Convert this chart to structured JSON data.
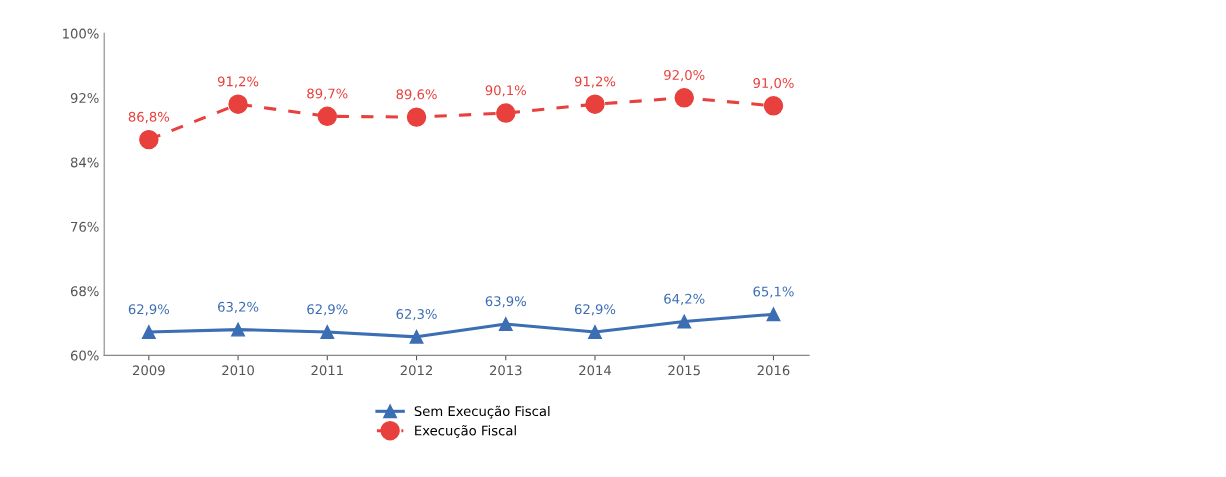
{
  "chart_data": {
    "type": "line",
    "categories": [
      "2009",
      "2010",
      "2011",
      "2012",
      "2013",
      "2014",
      "2015",
      "2016"
    ],
    "series": [
      {
        "name": "Sem Execução Fiscal",
        "color": "#3c6eb4",
        "marker": "triangle",
        "line_style": "solid",
        "values": [
          62.9,
          63.2,
          62.9,
          62.3,
          63.9,
          62.9,
          64.2,
          65.1
        ],
        "value_labels": [
          "62,9%",
          "63,2%",
          "62,9%",
          "62,3%",
          "63,9%",
          "62,9%",
          "64,2%",
          "65,1%"
        ]
      },
      {
        "name": "Execução Fiscal",
        "color": "#e8403c",
        "marker": "circle",
        "line_style": "dashed",
        "values": [
          86.8,
          91.2,
          89.7,
          89.6,
          90.1,
          91.2,
          92.0,
          91.0
        ],
        "value_labels": [
          "86,8%",
          "91,2%",
          "89,7%",
          "89,6%",
          "90,1%",
          "91,2%",
          "92,0%",
          "91,0%"
        ]
      }
    ],
    "ylim": [
      60,
      100
    ],
    "yticks": [
      {
        "value": 60,
        "label": "60%"
      },
      {
        "value": 68,
        "label": "68%"
      },
      {
        "value": 76,
        "label": "76%"
      },
      {
        "value": 84,
        "label": "84%"
      },
      {
        "value": 92,
        "label": "92%"
      },
      {
        "value": 100,
        "label": "100%"
      }
    ],
    "grid": false,
    "legend": "bottom"
  }
}
